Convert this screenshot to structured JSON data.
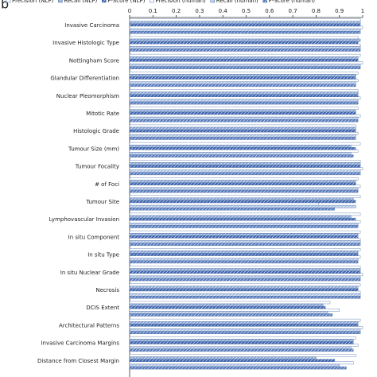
{
  "panel_label": "b",
  "chart_data": {
    "type": "hbar",
    "categories": [
      "Invasive Carcinoma",
      "Invasive Histologic Type",
      "Nottingham Score",
      "Glandular Differentiation",
      "Nuclear Pleomorphism",
      "Mitotic Rate",
      "Histologic Grade",
      "Tumour Size (mm)",
      "Tumour Focality",
      "# of Foci",
      "Tumour Site",
      "Lymphovascular Invasion",
      "In situ Component",
      "In situ Type",
      "In situ Nuclear Grade",
      "Necrosis",
      "DCIS Extent",
      "Architectural Patterns",
      "Invasive Carcinoma Margins",
      "Distance from Closest Margin"
    ],
    "series": [
      {
        "name": "Precision (NLP)",
        "color": "#ffffff",
        "values": [
          0.99,
          0.98,
          0.99,
          0.98,
          0.98,
          0.98,
          0.97,
          0.99,
          0.99,
          0.98,
          0.99,
          0.99,
          0.99,
          0.99,
          0.99,
          0.99,
          0.86,
          0.99,
          0.97,
          0.97
        ]
      },
      {
        "name": "Recall (NLP)",
        "color": "#8fa9d6",
        "values": [
          0.99,
          0.99,
          0.98,
          0.97,
          0.98,
          0.97,
          0.97,
          0.95,
          0.99,
          0.97,
          0.96,
          0.95,
          0.98,
          0.98,
          0.99,
          0.98,
          0.83,
          0.98,
          0.96,
          0.8
        ]
      },
      {
        "name": "F-Score (NLP)",
        "color": "#3f64b0",
        "values": [
          0.99,
          0.98,
          0.98,
          0.97,
          0.98,
          0.97,
          0.97,
          0.97,
          0.99,
          0.97,
          0.97,
          0.97,
          0.98,
          0.98,
          0.99,
          0.98,
          0.84,
          0.98,
          0.96,
          0.88
        ]
      },
      {
        "name": "Precision (human)",
        "color": "#ffffff",
        "values": [
          1,
          0.99,
          1,
          0.98,
          0.99,
          0.99,
          0.98,
          0.98,
          1,
          0.99,
          0.81,
          0.99,
          0.99,
          0.99,
          1,
          0.99,
          0.9,
          1,
          0.98,
          0.96
        ]
      },
      {
        "name": "Recall (human)",
        "color": "#b7c8e6",
        "values": [
          0.99,
          0.99,
          0.99,
          0.97,
          0.98,
          0.98,
          0.97,
          0.95,
          0.99,
          0.98,
          0.97,
          0.98,
          0.99,
          0.98,
          0.99,
          0.99,
          0.85,
          0.99,
          0.95,
          0.9
        ]
      },
      {
        "name": "F-Score (human)",
        "color": "#5a7dc0",
        "values": [
          0.99,
          0.99,
          0.99,
          0.97,
          0.98,
          0.98,
          0.97,
          0.96,
          0.99,
          0.98,
          0.88,
          0.98,
          0.99,
          0.98,
          0.99,
          0.99,
          0.87,
          0.99,
          0.96,
          0.93
        ]
      }
    ],
    "xlim": [
      0,
      1
    ],
    "xticks": [
      0,
      0.1,
      0.2,
      0.3,
      0.4,
      0.5,
      0.6,
      0.7,
      0.8,
      0.9,
      1
    ]
  }
}
